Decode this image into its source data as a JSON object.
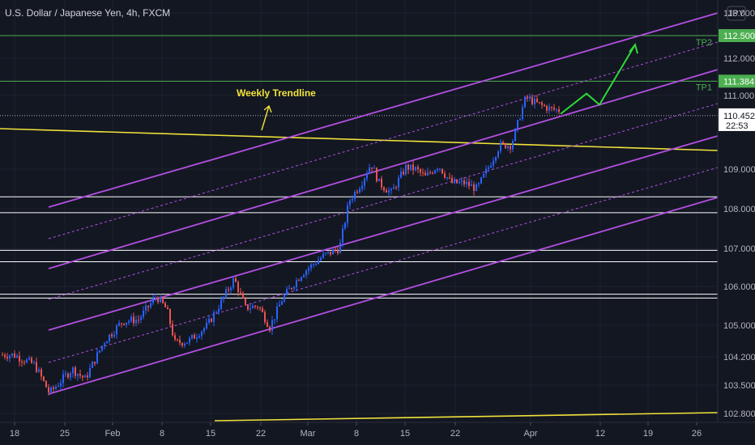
{
  "header": {
    "title": "U.S. Dollar / Japanese Yen, 4h, FXCM"
  },
  "currency_badge": "JPY",
  "chart_data": {
    "type": "candlestick",
    "symbol": "U.S. Dollar / Japanese Yen",
    "timeframe": "4h",
    "source": "FXCM",
    "y_ticks": [
      "113.000",
      "112.000",
      "111.000",
      "109.000",
      "108.000",
      "107.000",
      "106.000",
      "105.000",
      "104.200",
      "103.500",
      "102.800"
    ],
    "x_ticks": [
      "18",
      "25",
      "Feb",
      "8",
      "15",
      "22",
      "Mar",
      "8",
      "15",
      "22",
      "Apr",
      "12",
      "19",
      "26"
    ],
    "colors": {
      "up": "#2962ff",
      "down": "#ef5350",
      "background": "#131722",
      "channel": "#b44fe3",
      "trendline": "#f2e33a",
      "level": "#ffffff",
      "target": "#4caf50",
      "forecast": "#30d838"
    },
    "price_points": [
      [
        16,
        104.25
      ],
      [
        42,
        104.0
      ],
      [
        60,
        103.3
      ],
      [
        88,
        103.9
      ],
      [
        104,
        103.65
      ],
      [
        128,
        104.6
      ],
      [
        150,
        105.1
      ],
      [
        170,
        105.15
      ],
      [
        192,
        105.75
      ],
      [
        205,
        105.4
      ],
      [
        215,
        104.55
      ],
      [
        232,
        104.6
      ],
      [
        255,
        105.0
      ],
      [
        272,
        105.6
      ],
      [
        288,
        106.2
      ],
      [
        302,
        105.45
      ],
      [
        318,
        105.5
      ],
      [
        332,
        104.95
      ],
      [
        348,
        105.7
      ],
      [
        372,
        106.35
      ],
      [
        398,
        106.8
      ],
      [
        418,
        107.0
      ],
      [
        430,
        108.2
      ],
      [
        445,
        108.65
      ],
      [
        457,
        109.15
      ],
      [
        467,
        108.65
      ],
      [
        482,
        108.4
      ],
      [
        500,
        109.05
      ],
      [
        512,
        109.0
      ],
      [
        524,
        108.8
      ],
      [
        540,
        109.1
      ],
      [
        556,
        108.65
      ],
      [
        572,
        108.65
      ],
      [
        588,
        108.5
      ],
      [
        602,
        109.05
      ],
      [
        616,
        109.65
      ],
      [
        630,
        109.65
      ],
      [
        641,
        110.45
      ],
      [
        648,
        110.95
      ],
      [
        660,
        110.8
      ],
      [
        676,
        110.65
      ],
      [
        688,
        110.6
      ]
    ],
    "levels": [
      {
        "label": "TP2",
        "value": "112.500"
      },
      {
        "label": "TP1",
        "value": "111.384"
      },
      {
        "label": "",
        "value": "108.300"
      },
      {
        "label": "",
        "value": "107.900"
      },
      {
        "label": "",
        "value": "106.950"
      },
      {
        "label": "",
        "value": "106.650"
      },
      {
        "label": "",
        "value": "105.800"
      },
      {
        "label": "",
        "value": "105.700"
      }
    ],
    "current_price": {
      "value": "110.452",
      "countdown": "22:53"
    },
    "annotations": [
      {
        "text": "Weekly Trendline",
        "color": "#f2e33a"
      }
    ],
    "forecast_path": [
      [
        692,
        110.5
      ],
      [
        724,
        111.05
      ],
      [
        740,
        110.75
      ],
      [
        784,
        112.3
      ]
    ]
  }
}
